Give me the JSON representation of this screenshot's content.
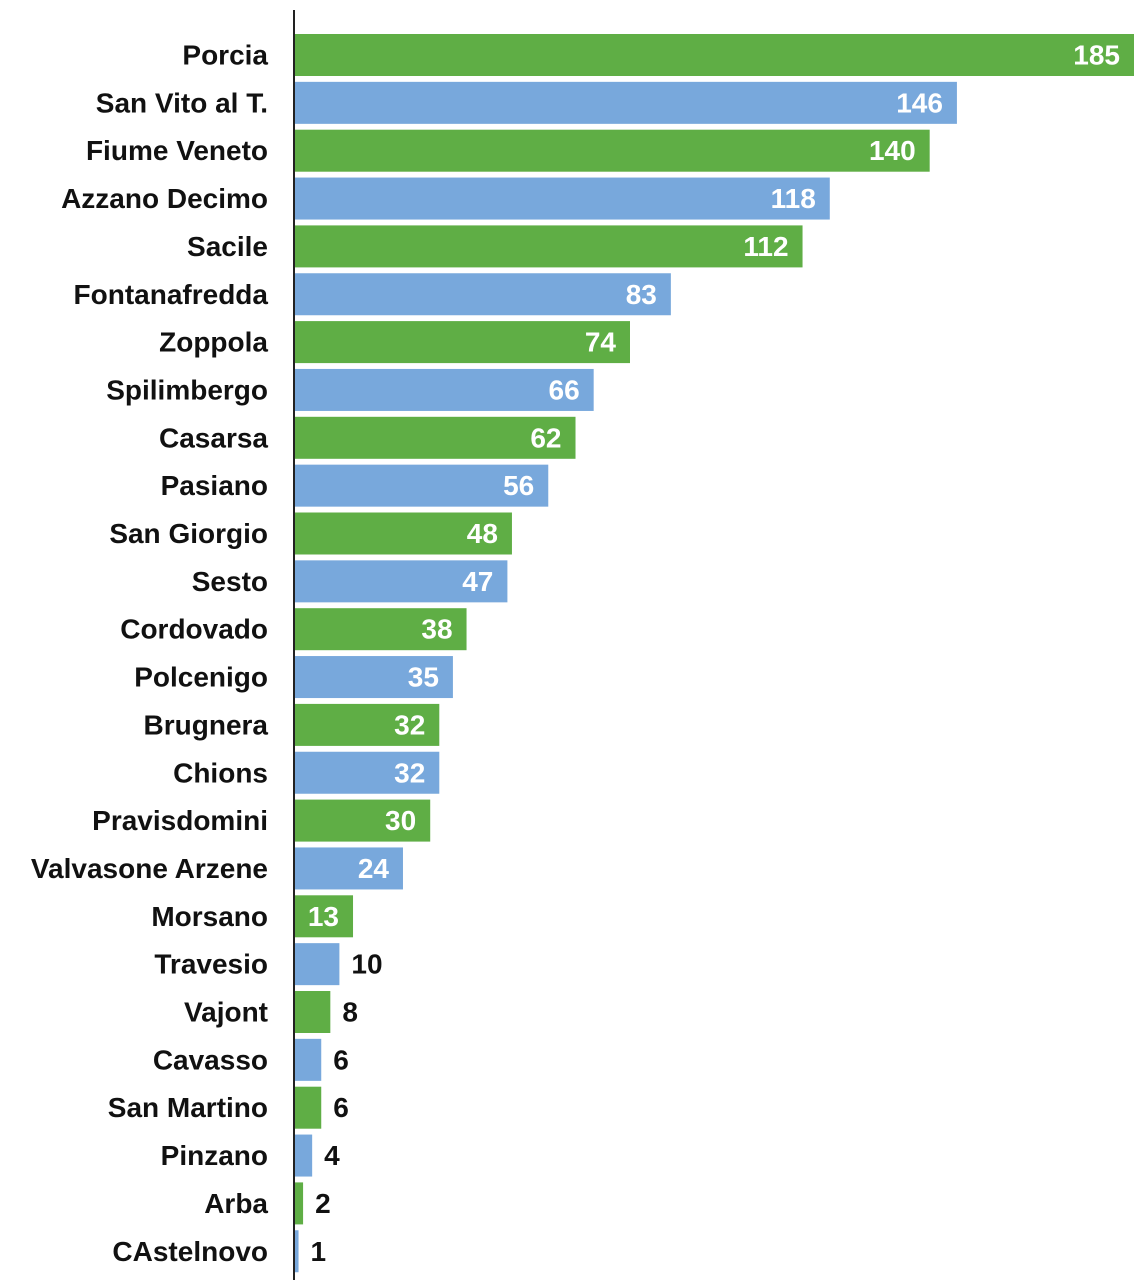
{
  "chart_data": {
    "type": "bar",
    "orientation": "horizontal",
    "categories": [
      "Porcia",
      "San Vito al T.",
      "Fiume Veneto",
      "Azzano Decimo",
      "Sacile",
      "Fontanafredda",
      "Zoppola",
      "Spilimbergo",
      "Casarsa",
      "Pasiano",
      "San Giorgio",
      "Sesto",
      "Cordovado",
      "Polcenigo",
      "Brugnera",
      "Chions",
      "Pravisdomini",
      "Valvasone Arzene",
      "Morsano",
      "Travesio",
      "Vajont",
      "Cavasso",
      "San Martino",
      "Pinzano",
      "Arba",
      "CAstelnovo"
    ],
    "values": [
      185,
      146,
      140,
      118,
      112,
      83,
      74,
      66,
      62,
      56,
      48,
      47,
      38,
      35,
      32,
      32,
      30,
      24,
      13,
      10,
      8,
      6,
      6,
      4,
      2,
      1
    ],
    "title": "",
    "xlabel": "",
    "ylabel": "",
    "xlim": [
      0,
      185
    ],
    "grid": false,
    "legend": "none",
    "bar_colors": [
      "#5fae45",
      "#78a8dc"
    ],
    "label_colors": {
      "inside": "#ffffff",
      "outside": "#111111"
    },
    "axis_color": "#222222"
  }
}
